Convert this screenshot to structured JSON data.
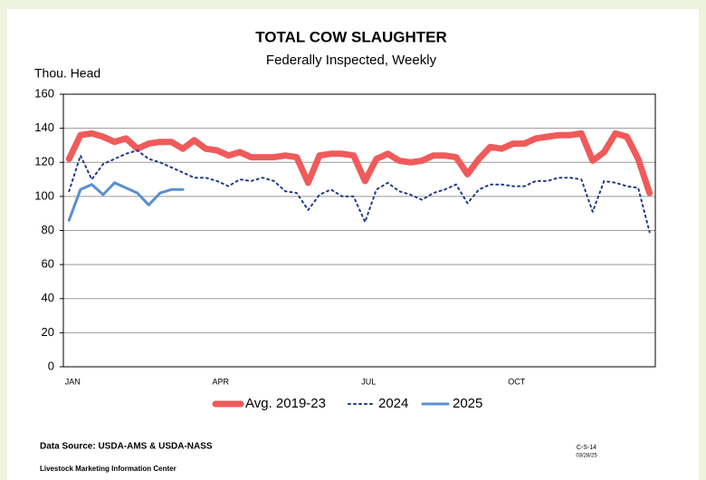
{
  "chart_data": {
    "type": "line",
    "title": "TOTAL COW SLAUGHTER",
    "subtitle": "Federally Inspected, Weekly",
    "y_label": "Thou. Head",
    "categories": [
      "JAN",
      null,
      null,
      null,
      null,
      null,
      null,
      null,
      null,
      null,
      null,
      null,
      null,
      "APR",
      null,
      null,
      null,
      null,
      null,
      null,
      null,
      null,
      null,
      null,
      null,
      null,
      "JUL",
      null,
      null,
      null,
      null,
      null,
      null,
      null,
      null,
      null,
      null,
      null,
      null,
      "OCT",
      null,
      null,
      null,
      null,
      null,
      null,
      null,
      null,
      null,
      null,
      null,
      null
    ],
    "series": [
      {
        "name": "Avg. 2019-23",
        "color": "#f05a5a",
        "style": "solid",
        "values": [
          122,
          136,
          137,
          135,
          132,
          134,
          128,
          131,
          132,
          132,
          128,
          133,
          128,
          127,
          124,
          126,
          123,
          123,
          123,
          124,
          123,
          108,
          124,
          125,
          125,
          124,
          109,
          122,
          125,
          121,
          120,
          121,
          124,
          124,
          123,
          113,
          122,
          129,
          128,
          131,
          131,
          134,
          135,
          136,
          136,
          137,
          121,
          126,
          137,
          135,
          122,
          102
        ]
      },
      {
        "name": "2024",
        "color": "#1f3a8a",
        "style": "dotted",
        "values": [
          103,
          124,
          110,
          119,
          122,
          125,
          127,
          122,
          120,
          117,
          114,
          111,
          111,
          109,
          106,
          110,
          109,
          111,
          109,
          103,
          102,
          92,
          101,
          104,
          100,
          100,
          85,
          104,
          108,
          103,
          101,
          98,
          102,
          104,
          107,
          96,
          104,
          107,
          107,
          106,
          106,
          109,
          109,
          111,
          111,
          110,
          91,
          109,
          108,
          106,
          105,
          79
        ]
      },
      {
        "name": "2025",
        "color": "#5b8fd0",
        "style": "solid",
        "values": [
          86,
          104,
          107,
          101,
          108,
          105,
          102,
          95,
          102,
          104,
          104,
          null,
          null,
          null,
          null,
          null,
          null,
          null,
          null,
          null,
          null,
          null,
          null,
          null,
          null,
          null,
          null,
          null,
          null,
          null,
          null,
          null,
          null,
          null,
          null,
          null,
          null,
          null,
          null,
          null,
          null,
          null,
          null,
          null,
          null,
          null,
          null,
          null,
          null,
          null,
          null,
          null
        ]
      }
    ],
    "ylim": [
      0,
      160
    ],
    "yticks": [
      0,
      20,
      40,
      60,
      80,
      100,
      120,
      140,
      160
    ],
    "grid": true,
    "legend": "bottom",
    "source": "Data Source:  USDA-AMS & USDA-NASS",
    "org": "Livestock Marketing Information Center",
    "code": "C-S-14",
    "date": "03/28/25"
  }
}
